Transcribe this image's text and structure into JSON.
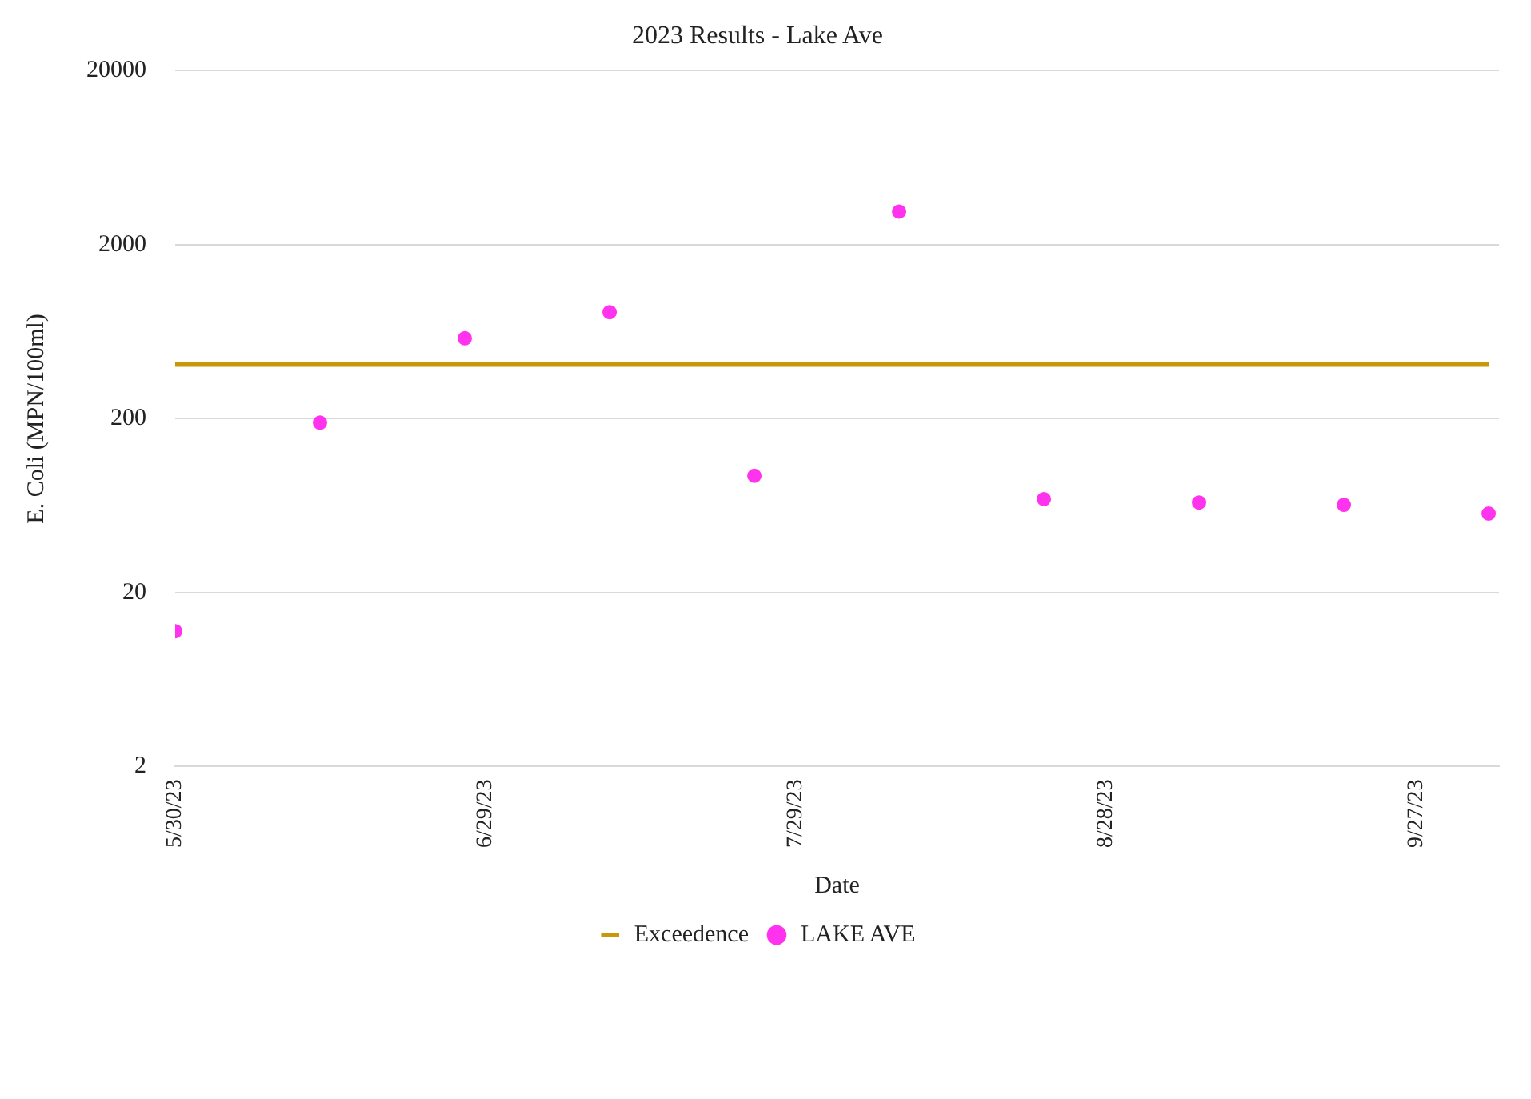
{
  "chart_data": {
    "type": "scatter",
    "title": "2023 Results - Lake Ave",
    "xlabel": "Date",
    "ylabel": "E. Coli (MPN/100ml)",
    "series": [
      {
        "name": "Exceedence",
        "type": "line",
        "color": "#c9980a",
        "x": [
          "2023-05-30",
          "2023-10-04"
        ],
        "values": [
          410,
          410
        ]
      },
      {
        "name": "LAKE AVE",
        "type": "scatter",
        "marker": "circle",
        "color": "#ff33ee",
        "x": [
          "2023-05-30",
          "2023-06-13",
          "2023-06-27",
          "2023-07-11",
          "2023-07-25",
          "2023-08-08",
          "2023-08-22",
          "2023-09-06",
          "2023-09-20",
          "2023-10-04"
        ],
        "values": [
          12,
          190,
          580,
          820,
          94,
          3100,
          69,
          66,
          64,
          57
        ]
      }
    ],
    "log": "y",
    "ylim": [
      2,
      20000
    ],
    "yticks": [
      2,
      20,
      200,
      2000,
      20000
    ],
    "xlim": [
      "2023-05-30",
      "2023-10-05"
    ],
    "xticks": [
      {
        "value": "2023-05-30",
        "label": "5/30/23"
      },
      {
        "value": "2023-06-29",
        "label": "6/29/23"
      },
      {
        "value": "2023-07-29",
        "label": "7/29/23"
      },
      {
        "value": "2023-08-28",
        "label": "8/28/23"
      },
      {
        "value": "2023-09-27",
        "label": "9/27/23"
      }
    ],
    "grid": "y",
    "legend": "bottom"
  }
}
